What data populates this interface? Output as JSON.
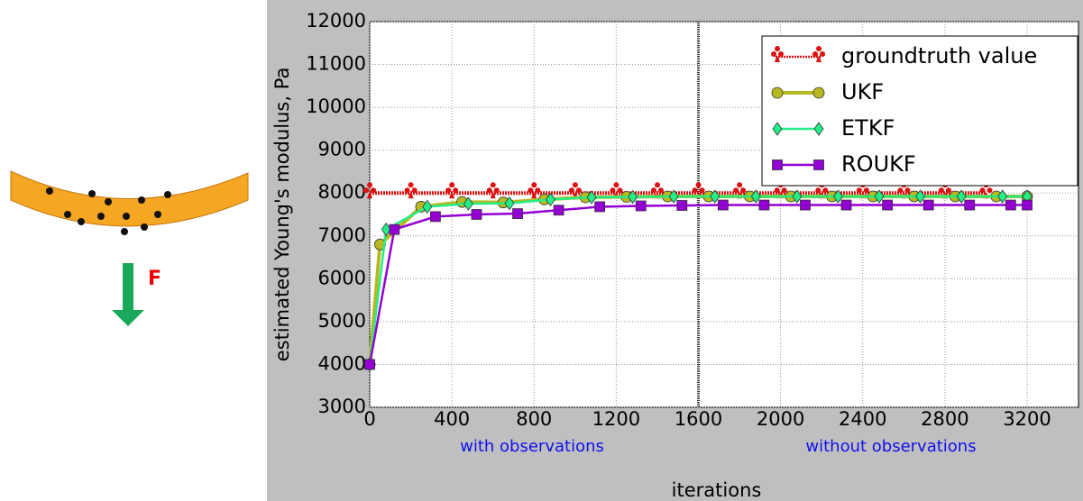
{
  "figure_label": "F",
  "chart_data": {
    "type": "line",
    "xlabel": "iterations",
    "ylabel": "estimated Young's modulus, Pa",
    "xlim": [
      0,
      3450
    ],
    "ylim": [
      3000,
      12000
    ],
    "xticks": [
      0,
      400,
      800,
      1200,
      1600,
      2000,
      2400,
      2800,
      3200
    ],
    "yticks": [
      3000,
      4000,
      5000,
      6000,
      7000,
      8000,
      9000,
      10000,
      11000,
      12000
    ],
    "grid": true,
    "legend": "upper right",
    "vline": 1600,
    "annotations": [
      "with observations",
      "without observations"
    ],
    "series": [
      {
        "name": "groundtruth value",
        "color": "#dd1111",
        "marker": "club",
        "dashed": true,
        "x": [
          0,
          200,
          400,
          600,
          800,
          1000,
          1200,
          1400,
          1600,
          1800,
          2000,
          2200,
          2400,
          2600,
          2800,
          3000
        ],
        "values": [
          8000,
          8000,
          8000,
          8000,
          8000,
          8000,
          8000,
          8000,
          8000,
          8000,
          8000,
          8000,
          8000,
          8000,
          8000,
          8000
        ]
      },
      {
        "name": "UKF",
        "color": "#b8b820",
        "marker": "circle",
        "x": [
          0,
          50,
          250,
          450,
          650,
          850,
          1050,
          1250,
          1450,
          1650,
          1850,
          2050,
          2250,
          2450,
          2650,
          2850,
          3050,
          3200
        ],
        "values": [
          4000,
          6800,
          7680,
          7790,
          7780,
          7850,
          7900,
          7910,
          7920,
          7920,
          7920,
          7920,
          7920,
          7920,
          7920,
          7920,
          7920,
          7920
        ]
      },
      {
        "name": "ETKF",
        "color": "#22ee88",
        "marker": "diamond",
        "x": [
          0,
          80,
          280,
          480,
          680,
          880,
          1080,
          1280,
          1480,
          1680,
          1880,
          2080,
          2280,
          2480,
          2680,
          2880,
          3080,
          3200
        ],
        "values": [
          4000,
          7150,
          7680,
          7750,
          7760,
          7850,
          7900,
          7910,
          7920,
          7920,
          7920,
          7920,
          7920,
          7920,
          7920,
          7920,
          7920,
          7920
        ]
      },
      {
        "name": "ROUKF",
        "color": "#9400d3",
        "marker": "square",
        "x": [
          0,
          120,
          320,
          520,
          720,
          920,
          1120,
          1320,
          1520,
          1720,
          1920,
          2120,
          2320,
          2520,
          2720,
          2920,
          3120,
          3200
        ],
        "values": [
          4000,
          7150,
          7450,
          7500,
          7520,
          7600,
          7680,
          7700,
          7710,
          7720,
          7720,
          7720,
          7720,
          7720,
          7720,
          7720,
          7720,
          7720
        ]
      }
    ]
  }
}
